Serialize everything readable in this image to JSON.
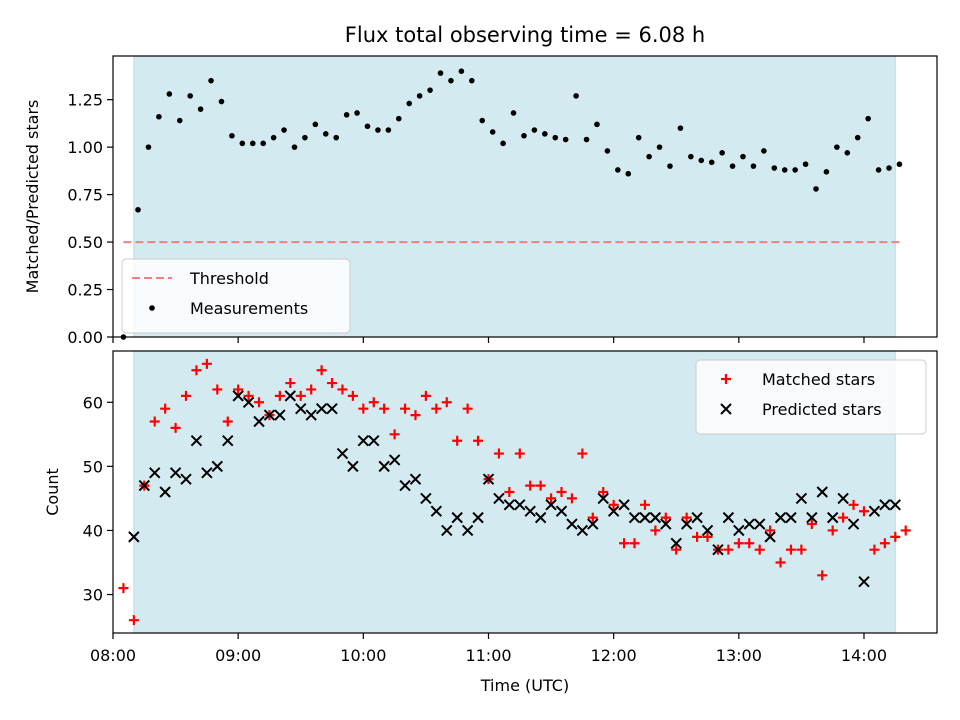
{
  "title": "Flux total observing time = 6.08 h",
  "chart_data": [
    {
      "type": "scatter",
      "ylabel": "Matched/Predicted stars",
      "xlim": [
        "08:00",
        "14:35"
      ],
      "ylim": [
        0,
        1.48
      ],
      "yticks": [
        "0.00",
        "0.25",
        "0.50",
        "0.75",
        "1.00",
        "1.25"
      ],
      "shaded_span": [
        "08:10",
        "14:15"
      ],
      "shade_color": "#d3eaf1",
      "threshold": 0.5,
      "legend_position": "lower-left",
      "legend": [
        {
          "label": "Threshold",
          "style": "dashed-line",
          "color": "#f08080"
        },
        {
          "label": "Measurements",
          "style": "dot",
          "color": "#000000"
        }
      ],
      "series": [
        {
          "name": "Measurements",
          "color": "#000000",
          "points": [
            [
              "08:05",
              0.0
            ],
            [
              "08:12",
              0.67
            ],
            [
              "08:17",
              1.0
            ],
            [
              "08:22",
              1.16
            ],
            [
              "08:27",
              1.28
            ],
            [
              "08:32",
              1.14
            ],
            [
              "08:37",
              1.27
            ],
            [
              "08:42",
              1.2
            ],
            [
              "08:47",
              1.35
            ],
            [
              "08:52",
              1.24
            ],
            [
              "08:57",
              1.06
            ],
            [
              "09:02",
              1.02
            ],
            [
              "09:07",
              1.02
            ],
            [
              "09:12",
              1.02
            ],
            [
              "09:17",
              1.05
            ],
            [
              "09:22",
              1.09
            ],
            [
              "09:27",
              1.0
            ],
            [
              "09:32",
              1.05
            ],
            [
              "09:37",
              1.12
            ],
            [
              "09:42",
              1.07
            ],
            [
              "09:47",
              1.05
            ],
            [
              "09:52",
              1.17
            ],
            [
              "09:57",
              1.18
            ],
            [
              "10:02",
              1.11
            ],
            [
              "10:07",
              1.09
            ],
            [
              "10:12",
              1.09
            ],
            [
              "10:17",
              1.15
            ],
            [
              "10:22",
              1.23
            ],
            [
              "10:27",
              1.27
            ],
            [
              "10:32",
              1.3
            ],
            [
              "10:37",
              1.39
            ],
            [
              "10:42",
              1.35
            ],
            [
              "10:47",
              1.4
            ],
            [
              "10:52",
              1.35
            ],
            [
              "10:57",
              1.14
            ],
            [
              "11:02",
              1.08
            ],
            [
              "11:07",
              1.02
            ],
            [
              "11:12",
              1.18
            ],
            [
              "11:17",
              1.06
            ],
            [
              "11:22",
              1.09
            ],
            [
              "11:27",
              1.07
            ],
            [
              "11:32",
              1.05
            ],
            [
              "11:37",
              1.04
            ],
            [
              "11:42",
              1.27
            ],
            [
              "11:47",
              1.04
            ],
            [
              "11:52",
              1.12
            ],
            [
              "11:57",
              0.98
            ],
            [
              "12:02",
              0.88
            ],
            [
              "12:07",
              0.86
            ],
            [
              "12:12",
              1.05
            ],
            [
              "12:17",
              0.95
            ],
            [
              "12:22",
              1.0
            ],
            [
              "12:27",
              0.9
            ],
            [
              "12:32",
              1.1
            ],
            [
              "12:37",
              0.95
            ],
            [
              "12:42",
              0.93
            ],
            [
              "12:47",
              0.92
            ],
            [
              "12:52",
              0.97
            ],
            [
              "12:57",
              0.9
            ],
            [
              "13:02",
              0.95
            ],
            [
              "13:07",
              0.9
            ],
            [
              "13:12",
              0.98
            ],
            [
              "13:17",
              0.89
            ],
            [
              "13:22",
              0.88
            ],
            [
              "13:27",
              0.88
            ],
            [
              "13:32",
              0.91
            ],
            [
              "13:37",
              0.78
            ],
            [
              "13:42",
              0.87
            ],
            [
              "13:47",
              1.0
            ],
            [
              "13:52",
              0.97
            ],
            [
              "13:57",
              1.05
            ],
            [
              "14:02",
              1.15
            ],
            [
              "14:07",
              0.88
            ],
            [
              "14:12",
              0.89
            ],
            [
              "14:17",
              0.91
            ]
          ]
        }
      ]
    },
    {
      "type": "scatter",
      "xlabel": "Time (UTC)",
      "ylabel": "Count",
      "xlim": [
        "08:00",
        "14:35"
      ],
      "ylim": [
        24,
        68
      ],
      "xticks": [
        "08:00",
        "09:00",
        "10:00",
        "11:00",
        "12:00",
        "13:00",
        "14:00"
      ],
      "yticks": [
        "30",
        "40",
        "50",
        "60"
      ],
      "shaded_span": [
        "08:10",
        "14:15"
      ],
      "shade_color": "#d3eaf1",
      "legend_position": "upper-right",
      "legend": [
        {
          "label": "Matched stars",
          "style": "plus",
          "color": "#ff0000"
        },
        {
          "label": "Predicted stars",
          "style": "x",
          "color": "#000000"
        }
      ],
      "series": [
        {
          "name": "Matched stars",
          "marker": "plus",
          "color": "#ff0000",
          "points": [
            [
              "08:05",
              31
            ],
            [
              "08:10",
              26
            ],
            [
              "08:15",
              47
            ],
            [
              "08:20",
              57
            ],
            [
              "08:25",
              59
            ],
            [
              "08:30",
              56
            ],
            [
              "08:35",
              61
            ],
            [
              "08:40",
              65
            ],
            [
              "08:45",
              66
            ],
            [
              "08:50",
              62
            ],
            [
              "08:55",
              57
            ],
            [
              "09:00",
              62
            ],
            [
              "09:05",
              61
            ],
            [
              "09:10",
              60
            ],
            [
              "09:15",
              58
            ],
            [
              "09:20",
              61
            ],
            [
              "09:25",
              63
            ],
            [
              "09:30",
              61
            ],
            [
              "09:35",
              62
            ],
            [
              "09:40",
              65
            ],
            [
              "09:45",
              63
            ],
            [
              "09:50",
              62
            ],
            [
              "09:55",
              61
            ],
            [
              "10:00",
              59
            ],
            [
              "10:05",
              60
            ],
            [
              "10:10",
              59
            ],
            [
              "10:15",
              55
            ],
            [
              "10:20",
              59
            ],
            [
              "10:25",
              58
            ],
            [
              "10:30",
              61
            ],
            [
              "10:35",
              59
            ],
            [
              "10:40",
              60
            ],
            [
              "10:45",
              54
            ],
            [
              "10:50",
              59
            ],
            [
              "10:55",
              54
            ],
            [
              "11:00",
              48
            ],
            [
              "11:05",
              52
            ],
            [
              "11:10",
              46
            ],
            [
              "11:15",
              52
            ],
            [
              "11:20",
              47
            ],
            [
              "11:25",
              47
            ],
            [
              "11:30",
              45
            ],
            [
              "11:35",
              46
            ],
            [
              "11:40",
              45
            ],
            [
              "11:45",
              52
            ],
            [
              "11:50",
              42
            ],
            [
              "11:55",
              46
            ],
            [
              "12:00",
              44
            ],
            [
              "12:05",
              38
            ],
            [
              "12:10",
              38
            ],
            [
              "12:15",
              44
            ],
            [
              "12:20",
              40
            ],
            [
              "12:25",
              42
            ],
            [
              "12:30",
              37
            ],
            [
              "12:35",
              42
            ],
            [
              "12:40",
              39
            ],
            [
              "12:45",
              39
            ],
            [
              "12:50",
              37
            ],
            [
              "12:55",
              37
            ],
            [
              "13:00",
              38
            ],
            [
              "13:05",
              38
            ],
            [
              "13:10",
              37
            ],
            [
              "13:15",
              40
            ],
            [
              "13:20",
              35
            ],
            [
              "13:25",
              37
            ],
            [
              "13:30",
              37
            ],
            [
              "13:35",
              41
            ],
            [
              "13:40",
              33
            ],
            [
              "13:45",
              40
            ],
            [
              "13:50",
              42
            ],
            [
              "13:55",
              44
            ],
            [
              "14:00",
              43
            ],
            [
              "14:05",
              37
            ],
            [
              "14:10",
              38
            ],
            [
              "14:15",
              39
            ],
            [
              "14:20",
              40
            ]
          ]
        },
        {
          "name": "Predicted stars",
          "marker": "x",
          "color": "#000000",
          "points": [
            [
              "08:10",
              39
            ],
            [
              "08:15",
              47
            ],
            [
              "08:20",
              49
            ],
            [
              "08:25",
              46
            ],
            [
              "08:30",
              49
            ],
            [
              "08:35",
              48
            ],
            [
              "08:40",
              54
            ],
            [
              "08:45",
              49
            ],
            [
              "08:50",
              50
            ],
            [
              "08:55",
              54
            ],
            [
              "09:00",
              61
            ],
            [
              "09:05",
              60
            ],
            [
              "09:10",
              57
            ],
            [
              "09:15",
              58
            ],
            [
              "09:20",
              58
            ],
            [
              "09:25",
              61
            ],
            [
              "09:30",
              59
            ],
            [
              "09:35",
              58
            ],
            [
              "09:40",
              59
            ],
            [
              "09:45",
              59
            ],
            [
              "09:50",
              52
            ],
            [
              "09:55",
              50
            ],
            [
              "10:00",
              54
            ],
            [
              "10:05",
              54
            ],
            [
              "10:10",
              50
            ],
            [
              "10:15",
              51
            ],
            [
              "10:20",
              47
            ],
            [
              "10:25",
              48
            ],
            [
              "10:30",
              45
            ],
            [
              "10:35",
              43
            ],
            [
              "10:40",
              40
            ],
            [
              "10:45",
              42
            ],
            [
              "10:50",
              40
            ],
            [
              "10:55",
              42
            ],
            [
              "11:00",
              48
            ],
            [
              "11:05",
              45
            ],
            [
              "11:10",
              44
            ],
            [
              "11:15",
              44
            ],
            [
              "11:20",
              43
            ],
            [
              "11:25",
              42
            ],
            [
              "11:30",
              44
            ],
            [
              "11:35",
              43
            ],
            [
              "11:40",
              41
            ],
            [
              "11:45",
              40
            ],
            [
              "11:50",
              41
            ],
            [
              "11:55",
              45
            ],
            [
              "12:00",
              43
            ],
            [
              "12:05",
              44
            ],
            [
              "12:10",
              42
            ],
            [
              "12:15",
              42
            ],
            [
              "12:20",
              42
            ],
            [
              "12:25",
              41
            ],
            [
              "12:30",
              38
            ],
            [
              "12:35",
              41
            ],
            [
              "12:40",
              42
            ],
            [
              "12:45",
              40
            ],
            [
              "12:50",
              37
            ],
            [
              "12:55",
              42
            ],
            [
              "13:00",
              40
            ],
            [
              "13:05",
              41
            ],
            [
              "13:10",
              41
            ],
            [
              "13:15",
              39
            ],
            [
              "13:20",
              42
            ],
            [
              "13:25",
              42
            ],
            [
              "13:30",
              45
            ],
            [
              "13:35",
              42
            ],
            [
              "13:40",
              46
            ],
            [
              "13:45",
              42
            ],
            [
              "13:50",
              45
            ],
            [
              "13:55",
              41
            ],
            [
              "14:00",
              32
            ],
            [
              "14:05",
              43
            ],
            [
              "14:10",
              44
            ],
            [
              "14:15",
              44
            ]
          ]
        }
      ]
    }
  ]
}
